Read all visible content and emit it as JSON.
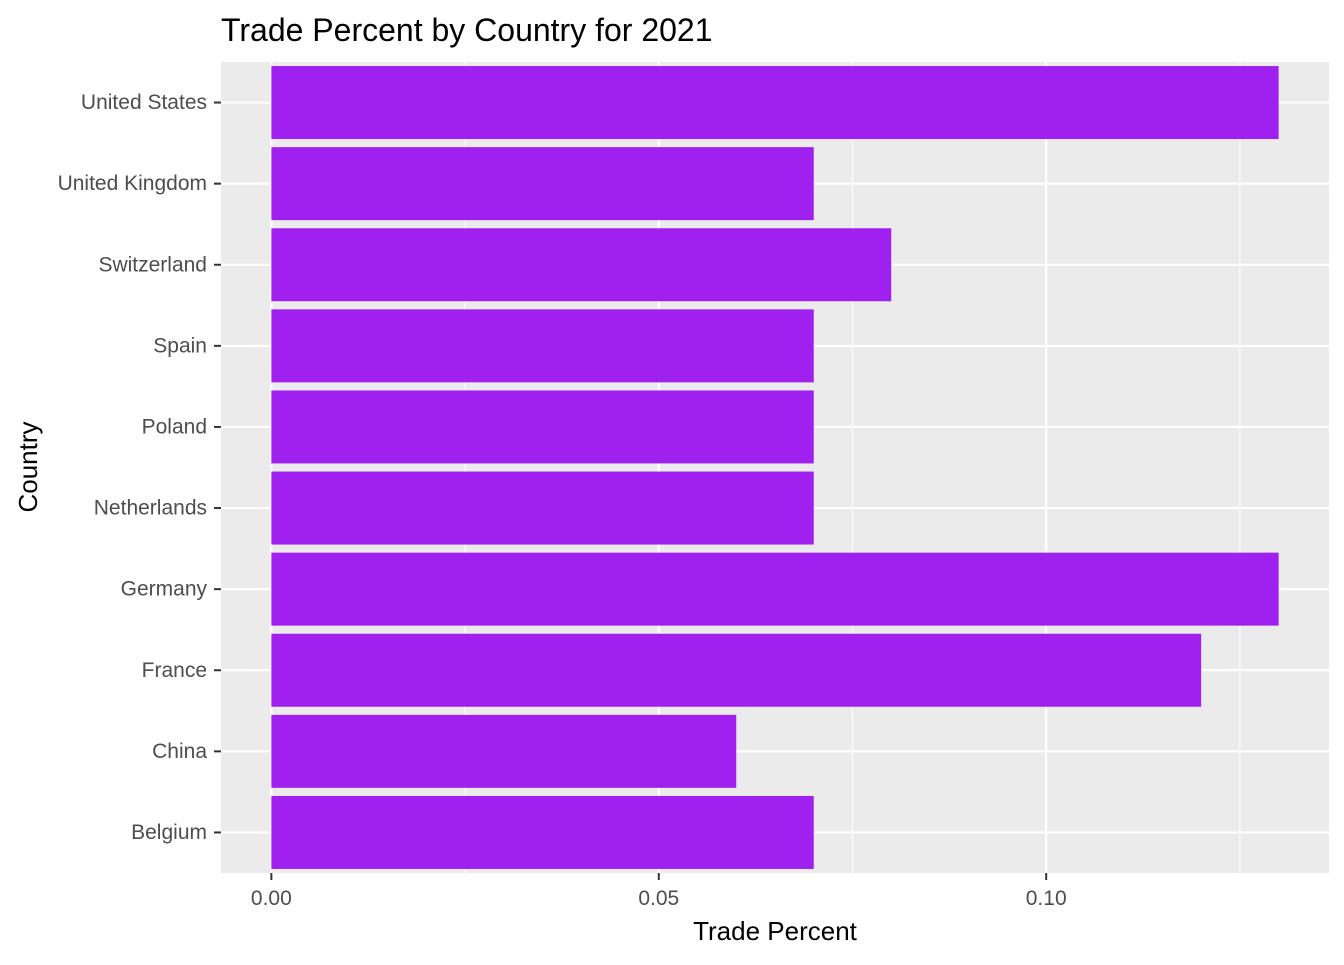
{
  "chart_data": {
    "type": "bar",
    "orientation": "horizontal",
    "title": "Trade Percent by Country for 2021",
    "xlabel": "Trade Percent",
    "ylabel": "Country",
    "categories": [
      "Belgium",
      "China",
      "France",
      "Germany",
      "Netherlands",
      "Poland",
      "Spain",
      "Switzerland",
      "United Kingdom",
      "United States"
    ],
    "values": [
      0.07,
      0.06,
      0.12,
      0.13,
      0.07,
      0.07,
      0.07,
      0.08,
      0.07,
      0.13
    ],
    "xlim": [
      -0.0065,
      0.1365
    ],
    "x_ticks": [
      0.0,
      0.05,
      0.1
    ],
    "x_tick_labels": [
      "0.00",
      "0.05",
      "0.10"
    ],
    "x_minor_ticks": [
      0.025,
      0.075,
      0.125
    ],
    "grid": true,
    "legend": "none",
    "colors": {
      "bar": "#A020F0",
      "panel": "#EBEBEB",
      "grid": "#FFFFFF",
      "tick_text": "#4D4D4D",
      "axis_title": "#000000",
      "tick_mark": "#333333"
    }
  }
}
